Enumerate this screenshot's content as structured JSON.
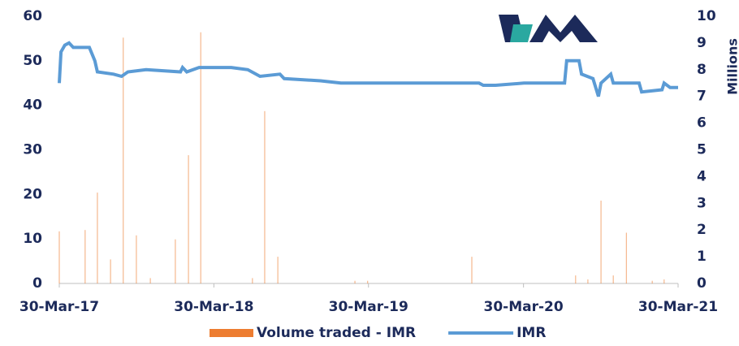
{
  "chart_data": {
    "type": "bar_line",
    "series": [
      {
        "name": "Volume traded - IMR",
        "type": "bar",
        "axis": "y2",
        "color": "#ed7d31",
        "x": [
          "2017-03-30",
          "2017-05-30",
          "2017-06-28",
          "2017-07-29",
          "2017-08-28",
          "2017-09-28",
          "2017-10-31",
          "2017-12-29",
          "2018-01-29",
          "2018-02-27",
          "2018-06-29",
          "2018-07-28",
          "2018-08-28",
          "2019-02-26",
          "2019-03-28",
          "2019-11-29",
          "2020-07-31",
          "2020-08-29",
          "2020-09-29",
          "2020-10-28",
          "2020-11-28",
          "2021-01-28",
          "2021-02-25"
        ],
        "values": [
          1.95,
          2.0,
          3.4,
          0.9,
          9.2,
          1.8,
          0.2,
          1.65,
          4.8,
          9.4,
          0.2,
          6.45,
          1.0,
          0.1,
          0.1,
          1.0,
          0.3,
          0.15,
          3.1,
          0.3,
          1.9,
          0.1,
          0.15
        ]
      },
      {
        "name": "IMR",
        "type": "line",
        "axis": "y",
        "color": "#5b9bd5",
        "x": [
          "2017-03-30",
          "2017-04-03",
          "2017-04-12",
          "2017-04-22",
          "2017-05-02",
          "2017-06-09",
          "2017-06-22",
          "2017-06-28",
          "2017-08-05",
          "2017-08-24",
          "2017-09-08",
          "2017-10-21",
          "2018-01-10",
          "2018-01-15",
          "2018-01-25",
          "2018-02-23",
          "2018-05-10",
          "2018-06-18",
          "2018-07-17",
          "2018-09-02",
          "2018-09-12",
          "2018-12-07",
          "2019-01-24",
          "2019-12-16",
          "2019-12-26",
          "2020-01-24",
          "2020-03-31",
          "2020-07-05",
          "2020-07-10",
          "2020-08-08",
          "2020-08-14",
          "2020-09-10",
          "2020-09-23",
          "2020-09-29",
          "2020-10-22",
          "2020-10-28",
          "2020-12-28",
          "2021-01-03",
          "2021-02-20",
          "2021-02-25",
          "2021-03-11",
          "2021-03-30"
        ],
        "values": [
          45,
          52,
          53.5,
          54,
          53,
          53,
          50,
          47.5,
          47,
          46.5,
          47.5,
          48,
          47.5,
          48.5,
          47.5,
          48.5,
          48.5,
          48,
          46.5,
          47,
          46,
          45.5,
          45,
          45,
          44.5,
          44.5,
          45,
          45,
          50,
          50,
          47,
          46,
          42,
          45,
          47,
          45,
          45,
          43,
          43.5,
          45,
          44,
          44
        ]
      }
    ],
    "xlim": [
      "2017-03-30",
      "2021-03-30"
    ],
    "xticks": [
      {
        "value": "2017-03-30",
        "label": "30-Mar-17"
      },
      {
        "value": "2018-03-30",
        "label": "30-Mar-18"
      },
      {
        "value": "2019-03-30",
        "label": "30-Mar-19"
      },
      {
        "value": "2020-03-30",
        "label": "30-Mar-20"
      },
      {
        "value": "2021-03-30",
        "label": "30-Mar-21"
      }
    ],
    "ylim": [
      0,
      60
    ],
    "yticks": [
      0,
      10,
      20,
      30,
      40,
      50,
      60
    ],
    "y2lim": [
      0,
      10
    ],
    "y2ticks": [
      0,
      1,
      2,
      3,
      4,
      5,
      6,
      7,
      8,
      9,
      10
    ],
    "y2label": "Millions",
    "legend": "bottom"
  }
}
